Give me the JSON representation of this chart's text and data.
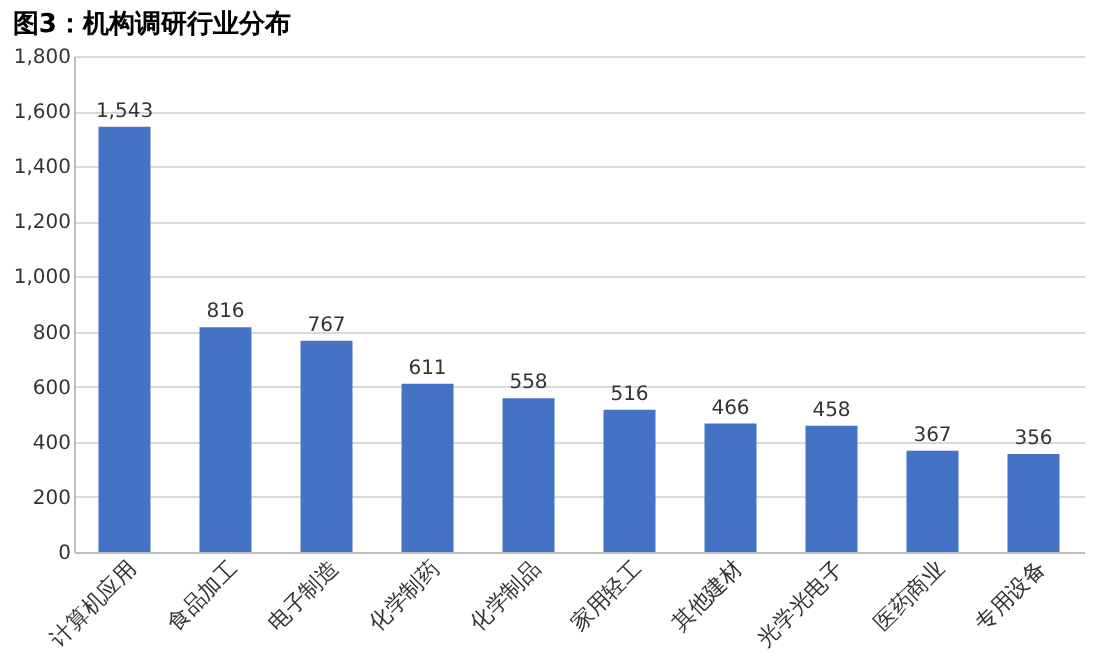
{
  "chart_data": {
    "type": "bar",
    "title": "图3：机构调研行业分布",
    "categories": [
      "计算机应用",
      "食品加工",
      "电子制造",
      "化学制药",
      "化学制品",
      "家用轻工",
      "其他建材",
      "光学光电子",
      "医药商业",
      "专用设备"
    ],
    "values": [
      1543,
      816,
      767,
      611,
      558,
      516,
      466,
      458,
      367,
      356
    ],
    "value_labels": [
      "1,543",
      "816",
      "767",
      "611",
      "558",
      "516",
      "466",
      "458",
      "367",
      "356"
    ],
    "color": "#4472c4",
    "ylim": [
      0,
      1800
    ],
    "yticks": [
      0,
      200,
      400,
      600,
      800,
      {
        "value": 1000,
        "label": "1,000"
      },
      {
        "value": 1200,
        "label": "1,200"
      },
      {
        "value": 1400,
        "label": "1,400"
      },
      {
        "value": 1600,
        "label": "1,600"
      },
      {
        "value": 1800,
        "label": "1,800"
      }
    ],
    "grid": "y"
  }
}
